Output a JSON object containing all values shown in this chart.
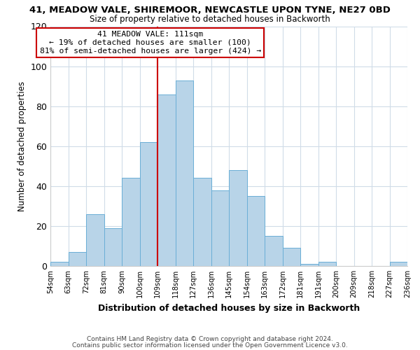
{
  "title1": "41, MEADOW VALE, SHIREMOOR, NEWCASTLE UPON TYNE, NE27 0BD",
  "title2": "Size of property relative to detached houses in Backworth",
  "xlabel": "Distribution of detached houses by size in Backworth",
  "ylabel": "Number of detached properties",
  "bar_labels": [
    "54sqm",
    "63sqm",
    "72sqm",
    "81sqm",
    "90sqm",
    "100sqm",
    "109sqm",
    "118sqm",
    "127sqm",
    "136sqm",
    "145sqm",
    "154sqm",
    "163sqm",
    "172sqm",
    "181sqm",
    "191sqm",
    "200sqm",
    "209sqm",
    "218sqm",
    "227sqm",
    "236sqm"
  ],
  "bar_values": [
    2,
    7,
    26,
    19,
    44,
    62,
    86,
    93,
    44,
    38,
    48,
    35,
    15,
    9,
    1,
    2,
    0,
    0,
    0,
    2
  ],
  "bar_color": "#b8d4e8",
  "bar_edge_color": "#6aaed6",
  "ylim": [
    0,
    120
  ],
  "yticks": [
    0,
    20,
    40,
    60,
    80,
    100,
    120
  ],
  "vline_color": "#cc0000",
  "annotation_title": "41 MEADOW VALE: 111sqm",
  "annotation_line1": "← 19% of detached houses are smaller (100)",
  "annotation_line2": "81% of semi-detached houses are larger (424) →",
  "annotation_box_color": "#ffffff",
  "annotation_box_edge": "#cc0000",
  "footer1": "Contains HM Land Registry data © Crown copyright and database right 2024.",
  "footer2": "Contains public sector information licensed under the Open Government Licence v3.0.",
  "background_color": "#ffffff",
  "grid_color": "#d0dce8"
}
